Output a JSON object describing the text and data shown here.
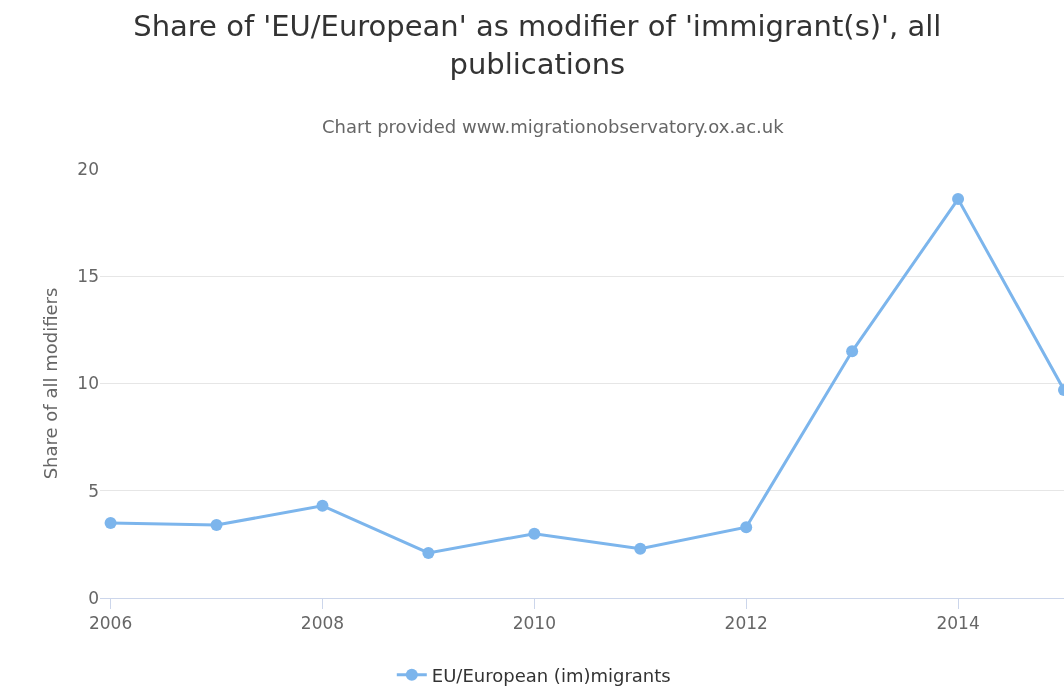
{
  "chart_data": {
    "type": "line",
    "title": "Share of 'EU/European' as modifier of 'immigrant(s)', all publications",
    "subtitle": "Chart provided www.migrationobservatory.ox.ac.uk",
    "ylabel": "Share of all modifiers",
    "x": [
      2006,
      2007,
      2008,
      2009,
      2010,
      2011,
      2012,
      2013,
      2014,
      2015
    ],
    "series": [
      {
        "name": "EU/European (im)migrants",
        "color": "#7cb5ec",
        "values": [
          3.5,
          3.4,
          4.3,
          2.1,
          3.0,
          2.3,
          3.3,
          11.5,
          18.6,
          9.7
        ]
      }
    ],
    "xlim": [
      2005.9,
      2015
    ],
    "xticks": [
      2006,
      2008,
      2010,
      2012,
      2014
    ],
    "ylim": [
      0,
      20
    ],
    "yticks": [
      0,
      5,
      10,
      15,
      20
    ],
    "grid": "y",
    "legend": "bottom",
    "marker": "circle",
    "line_style": "solid"
  }
}
